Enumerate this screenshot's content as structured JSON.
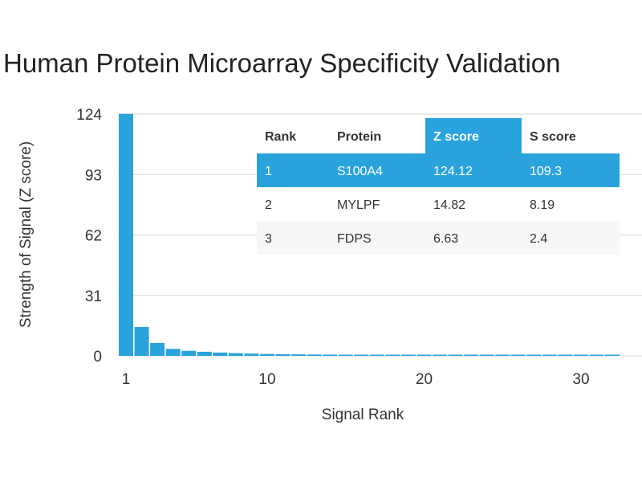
{
  "chart_data": {
    "type": "bar",
    "title": "Human Protein Microarray Specificity Validation",
    "xlabel": "Signal Rank",
    "ylabel": "Strength of Signal (Z score)",
    "yticks": [
      0,
      31,
      62,
      93,
      124
    ],
    "xticks": [
      1,
      10,
      20,
      30
    ],
    "ylim": [
      0,
      124
    ],
    "xlim": [
      1,
      33
    ],
    "grid": true,
    "bar_color": "#2aa3dd",
    "highlight_color": "#2aa3dd",
    "series": [
      {
        "x": [
          1,
          2,
          3,
          4,
          5,
          6,
          7,
          8,
          9,
          10,
          11,
          12,
          13,
          14,
          15,
          16,
          17,
          18,
          19,
          20,
          21,
          22,
          23,
          24,
          25,
          26,
          27,
          28,
          29,
          30,
          31,
          32
        ],
        "values": [
          124.12,
          14.82,
          6.63,
          3.6,
          2.6,
          2.1,
          1.7,
          1.4,
          1.2,
          1.0,
          0.9,
          0.8,
          0.7,
          0.65,
          0.6,
          0.55,
          0.5,
          0.48,
          0.45,
          0.42,
          0.4,
          0.38,
          0.36,
          0.35,
          0.33,
          0.32,
          0.3,
          0.29,
          0.28,
          0.27,
          0.26,
          0.25
        ]
      }
    ],
    "table": {
      "columns": [
        "Rank",
        "Protein",
        "Z score",
        "S score"
      ],
      "rows": [
        [
          "1",
          "S100A4",
          "124.12",
          "109.3"
        ],
        [
          "2",
          "MYLPF",
          "14.82",
          "8.19"
        ],
        [
          "3",
          "FDPS",
          "6.63",
          "2.4"
        ]
      ],
      "highlight_row": 0,
      "highlight_column": 2
    }
  }
}
